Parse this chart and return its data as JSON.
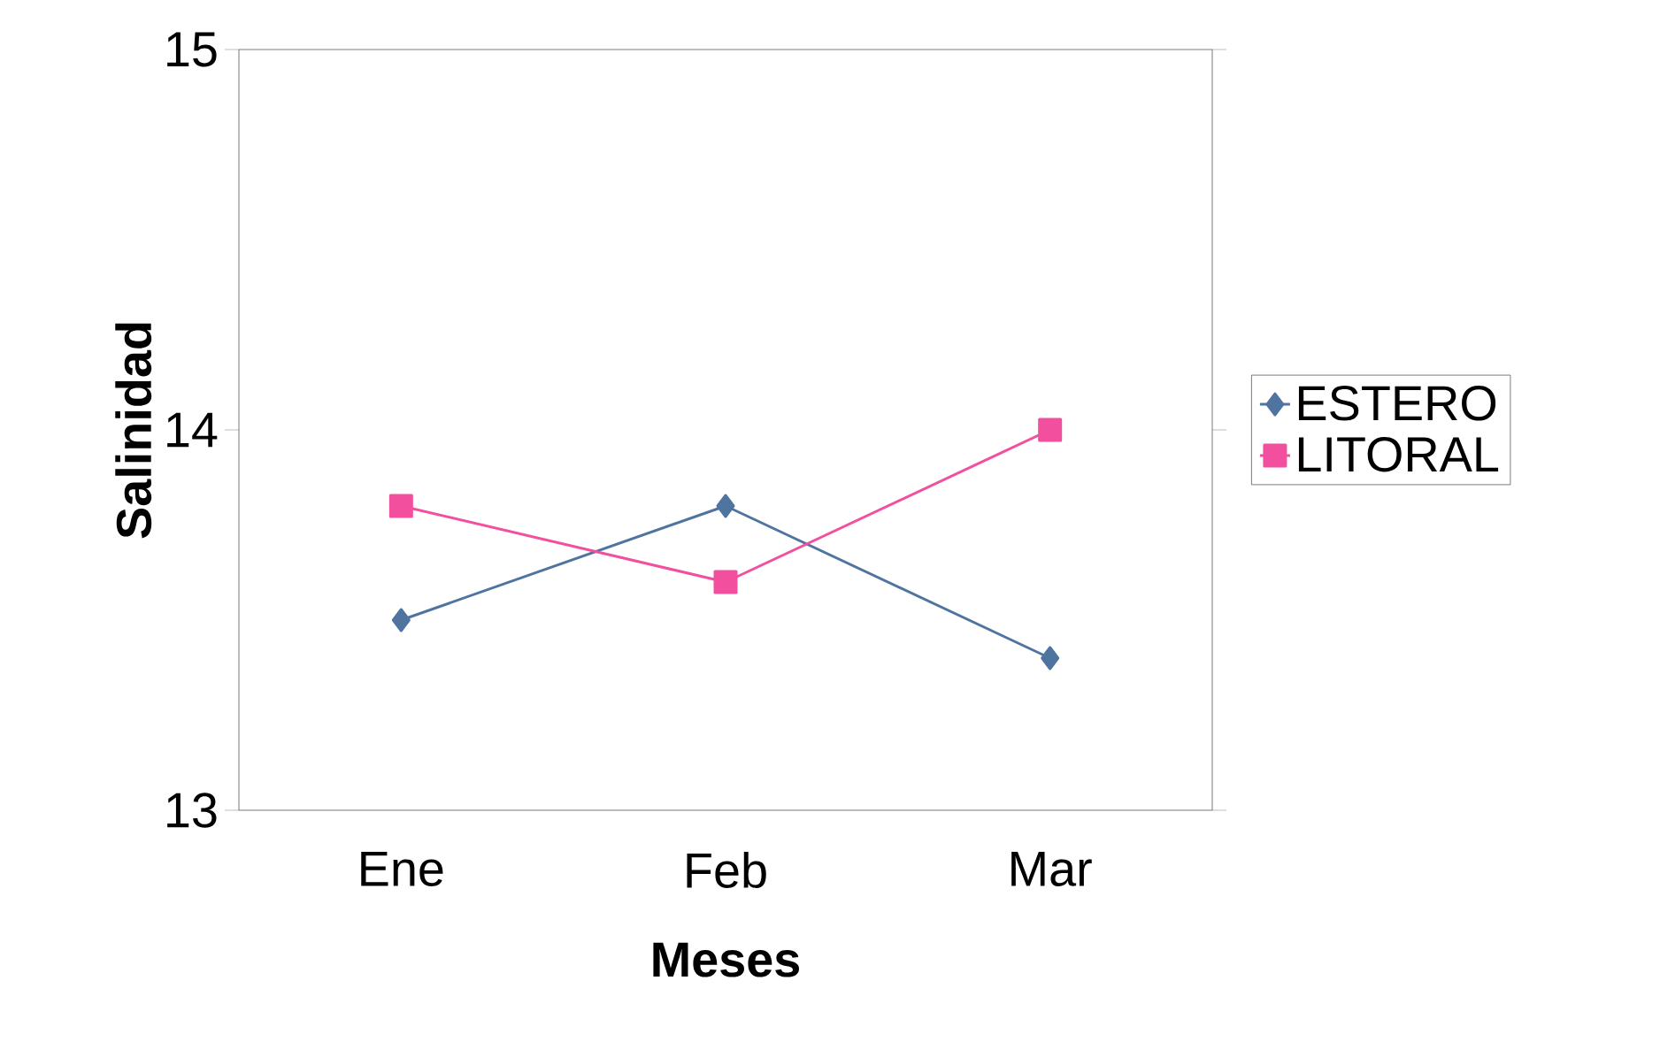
{
  "chart_data": {
    "type": "line",
    "xlabel": "Meses",
    "ylabel": "Salinidad",
    "categories": [
      "Ene",
      "Feb",
      "Mar"
    ],
    "series": [
      {
        "name": "ESTERO",
        "color": "#4f74a0",
        "marker": "diamond",
        "values": [
          13.5,
          13.8,
          13.4
        ]
      },
      {
        "name": "LITORAL",
        "color": "#f24f9e",
        "marker": "square",
        "values": [
          13.8,
          13.6,
          14.0
        ]
      }
    ],
    "ylim": [
      13,
      15
    ],
    "yticks": [
      13,
      14,
      15
    ],
    "grid": false,
    "legend": "right",
    "line_style": "solid"
  }
}
